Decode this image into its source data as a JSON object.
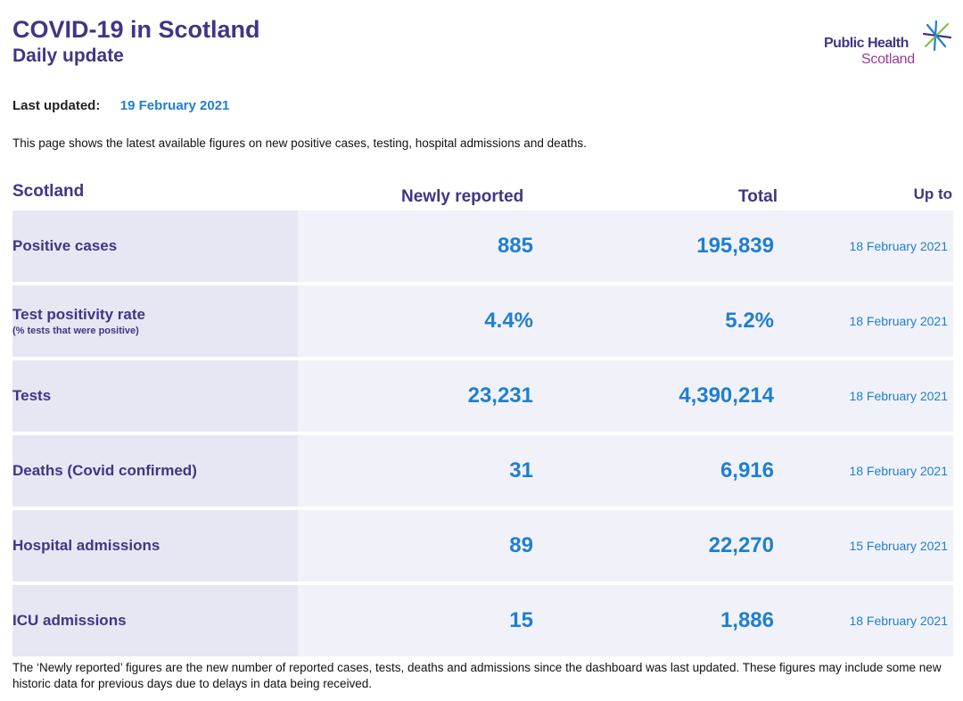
{
  "header": {
    "title": "COVID-19 in Scotland",
    "subtitle": "Daily update"
  },
  "logo": {
    "line1": "Public Health",
    "line2": "Scotland",
    "icon": "phs-star-icon"
  },
  "updated": {
    "label": "Last updated:",
    "value": "19 February 2021"
  },
  "intro": "This page shows the latest available figures on new positive cases, testing, hospital admissions and deaths.",
  "table": {
    "columns": {
      "region": "Scotland",
      "new": "Newly reported",
      "total": "Total",
      "upto": "Up to"
    },
    "rows": [
      {
        "label": "Positive cases",
        "sublabel": "",
        "new": "885",
        "total": "195,839",
        "date": "18 February 2021"
      },
      {
        "label": "Test positivity rate",
        "sublabel": "(% tests that were positive)",
        "new": "4.4%",
        "total": "5.2%",
        "date": "18 February 2021"
      },
      {
        "label": "Tests",
        "sublabel": "",
        "new": "23,231",
        "total": "4,390,214",
        "date": "18 February 2021"
      },
      {
        "label": "Deaths (Covid confirmed)",
        "sublabel": "",
        "new": "31",
        "total": "6,916",
        "date": "18 February 2021"
      },
      {
        "label": "Hospital admissions",
        "sublabel": "",
        "new": "89",
        "total": "22,270",
        "date": "15 February 2021"
      },
      {
        "label": "ICU admissions",
        "sublabel": "",
        "new": "15",
        "total": "1,886",
        "date": "18 February 2021"
      }
    ]
  },
  "footnote": "The ‘Newly reported’ figures are the new number of reported cases, tests, deaths and admissions since the dashboard was last updated. These figures may include some new historic data for previous days due to delays in data being received.",
  "colors": {
    "brand_purple": "#3f3685",
    "accent_blue": "#1f7fd1",
    "logo_magenta": "#9b3a9b",
    "logo_green": "#7fc241",
    "row_bg": "#f1f2f9",
    "label_bg": "#e6e7f3"
  }
}
